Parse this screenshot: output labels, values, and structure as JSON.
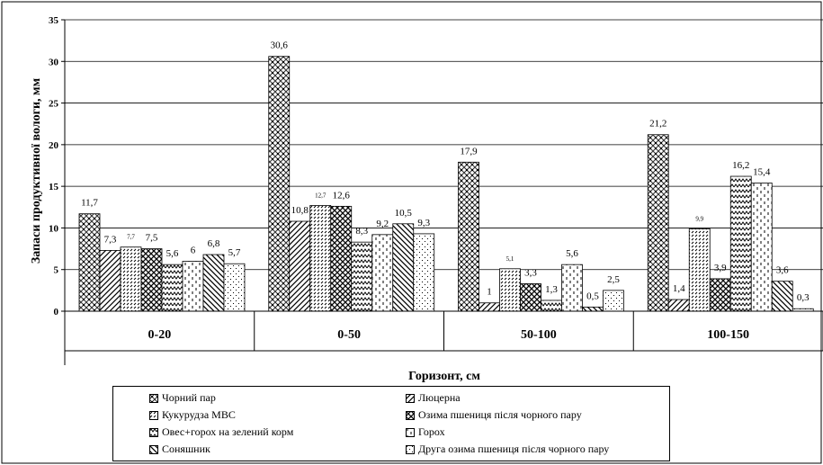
{
  "chart_data": {
    "type": "bar",
    "title": "",
    "xlabel": "Горизонт, см",
    "ylabel": "Запаси продуктивної вологи, мм",
    "ylim": [
      0,
      35
    ],
    "yticks": [
      0,
      5,
      10,
      15,
      20,
      25,
      30,
      35
    ],
    "grid": true,
    "legend_position": "bottom",
    "categories": [
      "0-20",
      "0-50",
      "50-100",
      "100-150"
    ],
    "series": [
      {
        "name": "Чорний пар",
        "values": [
          11.7,
          30.6,
          17.9,
          21.2
        ],
        "labels": [
          "11,7",
          "30,6",
          "17,9",
          "21,2"
        ]
      },
      {
        "name": "Люцерна",
        "values": [
          7.3,
          10.8,
          1,
          1.4
        ],
        "labels": [
          "7,3",
          "10,8",
          "1",
          "1,4"
        ]
      },
      {
        "name": "Кукурудза МВС",
        "values": [
          7.7,
          12.7,
          5.1,
          9.9
        ],
        "labels": [
          "7,7",
          "12,7",
          "5,1",
          "9,9"
        ]
      },
      {
        "name": "Озима пшениця після чорного пару",
        "values": [
          7.5,
          12.6,
          3.3,
          3.9
        ],
        "labels": [
          "7,5",
          "12,6",
          "3,3",
          "3,9"
        ]
      },
      {
        "name": "Овес+горох на зелений корм",
        "values": [
          5.6,
          8.3,
          1.3,
          16.2
        ],
        "labels": [
          "5,6",
          "8,3",
          "1,3",
          "16,2"
        ]
      },
      {
        "name": "Горох",
        "values": [
          6,
          9.2,
          5.6,
          15.4
        ],
        "labels": [
          "6",
          "9,2",
          "5,6",
          "15,4"
        ]
      },
      {
        "name": "Соняшник",
        "values": [
          6.8,
          10.5,
          0.5,
          3.6
        ],
        "labels": [
          "6,8",
          "10,5",
          "0,5",
          "3,6"
        ]
      },
      {
        "name": "Друга озима пшениця після чорного пару",
        "values": [
          5.7,
          9.3,
          2.5,
          0.3
        ],
        "labels": [
          "5,7",
          "9,3",
          "2,5",
          "0,3"
        ]
      }
    ]
  }
}
